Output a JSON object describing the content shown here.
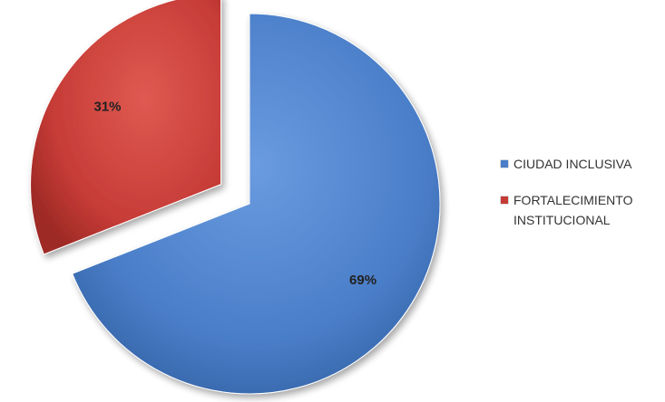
{
  "chart_data": {
    "type": "pie",
    "title": "",
    "style": "3d-exploded",
    "legend_position": "right",
    "slices": [
      {
        "name": "CIUDAD INCLUSIVA",
        "value": 69,
        "label": "69%",
        "color": "#4a7ec8"
      },
      {
        "name": "FORTALECIMIENTO INSTITUCIONAL",
        "value": 31,
        "label": "31%",
        "color": "#c63b36"
      }
    ]
  },
  "legend": {
    "items": [
      {
        "text_lines": "CIUDAD INCLUSIVA",
        "color": "#4a7ec8"
      },
      {
        "text_lines": "FORTALECIMIENTO INSTITUCIONAL",
        "color": "#c63b36"
      }
    ]
  }
}
